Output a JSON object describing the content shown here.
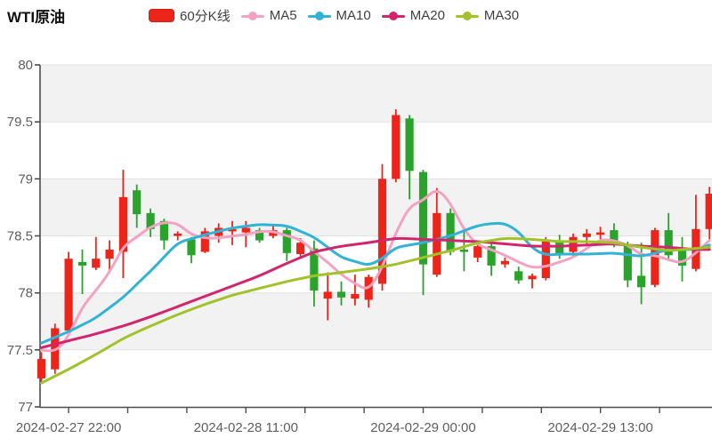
{
  "header": {
    "title": "WTI原油",
    "legend": [
      {
        "label": "60分K线",
        "marker": "candle",
        "color": "#ed2419"
      },
      {
        "label": "MA5",
        "marker": "line-dot",
        "color": "#f5a2c2"
      },
      {
        "label": "MA10",
        "marker": "line-dot",
        "color": "#30b3d6"
      },
      {
        "label": "MA20",
        "marker": "line-dot",
        "color": "#d3256d"
      },
      {
        "label": "MA30",
        "marker": "line-dot",
        "color": "#a2c229"
      }
    ]
  },
  "chart_data": {
    "type": "candlestick",
    "title": "WTI原油",
    "interval": "60分K线",
    "ylim": [
      77,
      80
    ],
    "y_tick_labels": [
      "77",
      "77.5",
      "78",
      "78.5",
      "79",
      "79.5",
      "80"
    ],
    "x_axis_labels": [
      {
        "index": 2,
        "label": "2024-02-27 22:00"
      },
      {
        "index": 15,
        "label": "2024-02-28 11:00"
      },
      {
        "index": 28,
        "label": "2024-02-29 00:00"
      },
      {
        "index": 41,
        "label": "2024-02-29 13:00"
      }
    ],
    "colors": {
      "up": "#ed2419",
      "down": "#29a32c",
      "band": "#f2f2f3",
      "grid": "#e2e2e2",
      "axis": "#4d4d4d",
      "tick_text": "#5e5e5e"
    },
    "candles_format": [
      "open",
      "high",
      "low",
      "close"
    ],
    "candles": [
      [
        77.25,
        77.48,
        77.21,
        77.42
      ],
      [
        77.33,
        77.73,
        77.29,
        77.69
      ],
      [
        77.67,
        78.36,
        77.65,
        78.3
      ],
      [
        78.27,
        78.38,
        77.99,
        78.24
      ],
      [
        78.22,
        78.49,
        78.2,
        78.3
      ],
      [
        78.3,
        78.46,
        78.18,
        78.38
      ],
      [
        78.36,
        79.08,
        78.13,
        78.84
      ],
      [
        78.9,
        78.95,
        78.57,
        78.69
      ],
      [
        78.7,
        78.74,
        78.49,
        78.56
      ],
      [
        78.63,
        78.65,
        78.38,
        78.46
      ],
      [
        78.5,
        78.54,
        78.46,
        78.52
      ],
      [
        78.47,
        78.49,
        78.26,
        78.33
      ],
      [
        78.36,
        78.57,
        78.35,
        78.54
      ],
      [
        78.5,
        78.61,
        78.44,
        78.57
      ],
      [
        78.54,
        78.63,
        78.42,
        78.56
      ],
      [
        78.53,
        78.63,
        78.4,
        78.57
      ],
      [
        78.55,
        78.57,
        78.44,
        78.46
      ],
      [
        78.5,
        78.6,
        78.48,
        78.55
      ],
      [
        78.55,
        78.57,
        78.28,
        78.35
      ],
      [
        78.34,
        78.48,
        78.3,
        78.44
      ],
      [
        78.39,
        78.46,
        77.88,
        78.02
      ],
      [
        77.95,
        78.18,
        77.76,
        78.01
      ],
      [
        78.01,
        78.1,
        77.89,
        77.96
      ],
      [
        77.95,
        78.16,
        77.89,
        77.99
      ],
      [
        77.94,
        78.16,
        77.87,
        78.14
      ],
      [
        78.08,
        79.13,
        78.02,
        79.0
      ],
      [
        79.0,
        79.61,
        78.97,
        79.56
      ],
      [
        79.53,
        79.56,
        78.82,
        79.07
      ],
      [
        79.06,
        79.08,
        77.98,
        78.25
      ],
      [
        78.16,
        78.92,
        78.14,
        78.7
      ],
      [
        78.7,
        78.74,
        78.33,
        78.36
      ],
      [
        78.38,
        78.58,
        78.19,
        78.36
      ],
      [
        78.31,
        78.46,
        78.27,
        78.41
      ],
      [
        78.41,
        78.47,
        78.15,
        78.24
      ],
      [
        78.25,
        78.31,
        78.22,
        78.28
      ],
      [
        78.19,
        78.23,
        78.08,
        78.11
      ],
      [
        78.12,
        78.17,
        78.04,
        78.15
      ],
      [
        78.13,
        78.49,
        78.11,
        78.45
      ],
      [
        78.45,
        78.51,
        78.3,
        78.34
      ],
      [
        78.36,
        78.52,
        78.31,
        78.49
      ],
      [
        78.49,
        78.56,
        78.41,
        78.52
      ],
      [
        78.51,
        78.58,
        78.47,
        78.53
      ],
      [
        78.55,
        78.61,
        78.4,
        78.43
      ],
      [
        78.42,
        78.45,
        78.05,
        78.11
      ],
      [
        78.15,
        78.44,
        77.9,
        78.05
      ],
      [
        78.07,
        78.57,
        78.05,
        78.55
      ],
      [
        78.55,
        78.7,
        78.3,
        78.33
      ],
      [
        78.39,
        78.49,
        78.1,
        78.24
      ],
      [
        78.21,
        78.86,
        78.19,
        78.56
      ],
      [
        78.56,
        78.93,
        78.47,
        78.87
      ]
    ],
    "ma_series": [
      {
        "name": "MA5",
        "color": "#f5a2c2",
        "points": [
          [
            0,
            77.5
          ],
          [
            1,
            77.47
          ],
          [
            2,
            77.62
          ],
          [
            3,
            77.88
          ],
          [
            4,
            78.02
          ],
          [
            5,
            78.18
          ],
          [
            6,
            78.41
          ],
          [
            7,
            78.49
          ],
          [
            8,
            78.58
          ],
          [
            9,
            78.62
          ],
          [
            10,
            78.61
          ],
          [
            11,
            78.51
          ],
          [
            12,
            78.48
          ],
          [
            13,
            78.48
          ],
          [
            14,
            78.5
          ],
          [
            15,
            78.51
          ],
          [
            16,
            78.54
          ],
          [
            17,
            78.54
          ],
          [
            18,
            78.5
          ],
          [
            19,
            78.47
          ],
          [
            20,
            78.36
          ],
          [
            21,
            78.27
          ],
          [
            22,
            78.16
          ],
          [
            23,
            78.08
          ],
          [
            24,
            78.02
          ],
          [
            25,
            78.22
          ],
          [
            26,
            78.53
          ],
          [
            27,
            78.76
          ],
          [
            28,
            78.81
          ],
          [
            29,
            78.92
          ],
          [
            30,
            78.79
          ],
          [
            31,
            78.55
          ],
          [
            32,
            78.42
          ],
          [
            33,
            78.38
          ],
          [
            34,
            78.33
          ],
          [
            35,
            78.27
          ],
          [
            36,
            78.22
          ],
          [
            37,
            78.23
          ],
          [
            38,
            78.27
          ],
          [
            39,
            78.31
          ],
          [
            40,
            78.39
          ],
          [
            41,
            78.47
          ],
          [
            42,
            78.46
          ],
          [
            43,
            78.42
          ],
          [
            44,
            78.33
          ],
          [
            45,
            78.33
          ],
          [
            46,
            78.29
          ],
          [
            47,
            78.26
          ],
          [
            48,
            78.35
          ],
          [
            49,
            78.46
          ]
        ]
      },
      {
        "name": "MA10",
        "color": "#30b3d6",
        "points": [
          [
            0,
            77.56
          ],
          [
            2,
            77.66
          ],
          [
            4,
            77.78
          ],
          [
            6,
            77.96
          ],
          [
            8,
            78.19
          ],
          [
            10,
            78.44
          ],
          [
            12,
            78.51
          ],
          [
            14,
            78.57
          ],
          [
            16,
            78.6
          ],
          [
            18,
            78.59
          ],
          [
            20,
            78.49
          ],
          [
            22,
            78.31
          ],
          [
            24,
            78.24
          ],
          [
            25,
            78.3
          ],
          [
            26,
            78.4
          ],
          [
            28,
            78.44
          ],
          [
            30,
            78.5
          ],
          [
            32,
            78.59
          ],
          [
            33,
            78.61
          ],
          [
            34,
            78.61
          ],
          [
            35,
            78.54
          ],
          [
            36,
            78.39
          ],
          [
            37,
            78.33
          ],
          [
            38,
            78.34
          ],
          [
            40,
            78.34
          ],
          [
            42,
            78.35
          ],
          [
            44,
            78.32
          ],
          [
            46,
            78.38
          ],
          [
            48,
            78.38
          ],
          [
            49,
            78.42
          ]
        ]
      },
      {
        "name": "MA20",
        "color": "#d3256d",
        "points": [
          [
            0,
            77.52
          ],
          [
            2,
            77.58
          ],
          [
            4,
            77.64
          ],
          [
            6,
            77.71
          ],
          [
            8,
            77.79
          ],
          [
            10,
            77.88
          ],
          [
            12,
            77.97
          ],
          [
            14,
            78.06
          ],
          [
            16,
            78.15
          ],
          [
            18,
            78.26
          ],
          [
            20,
            78.36
          ],
          [
            22,
            78.41
          ],
          [
            24,
            78.44
          ],
          [
            26,
            78.48
          ],
          [
            28,
            78.47
          ],
          [
            30,
            78.46
          ],
          [
            32,
            78.45
          ],
          [
            34,
            78.43
          ],
          [
            36,
            78.41
          ],
          [
            38,
            78.41
          ],
          [
            40,
            78.42
          ],
          [
            42,
            78.43
          ],
          [
            44,
            78.41
          ],
          [
            46,
            78.4
          ],
          [
            48,
            78.38
          ],
          [
            49,
            78.38
          ]
        ]
      },
      {
        "name": "MA30",
        "color": "#a2c229",
        "points": [
          [
            0,
            77.21
          ],
          [
            2,
            77.33
          ],
          [
            4,
            77.46
          ],
          [
            6,
            77.6
          ],
          [
            8,
            77.71
          ],
          [
            10,
            77.81
          ],
          [
            12,
            77.9
          ],
          [
            14,
            77.98
          ],
          [
            16,
            78.04
          ],
          [
            18,
            78.1
          ],
          [
            20,
            78.15
          ],
          [
            22,
            78.18
          ],
          [
            24,
            78.21
          ],
          [
            26,
            78.25
          ],
          [
            28,
            78.31
          ],
          [
            30,
            78.37
          ],
          [
            32,
            78.44
          ],
          [
            34,
            78.48
          ],
          [
            36,
            78.47
          ],
          [
            38,
            78.45
          ],
          [
            40,
            78.45
          ],
          [
            42,
            78.44
          ],
          [
            44,
            78.4
          ],
          [
            46,
            78.37
          ],
          [
            48,
            78.39
          ],
          [
            49,
            78.4
          ]
        ]
      }
    ]
  }
}
